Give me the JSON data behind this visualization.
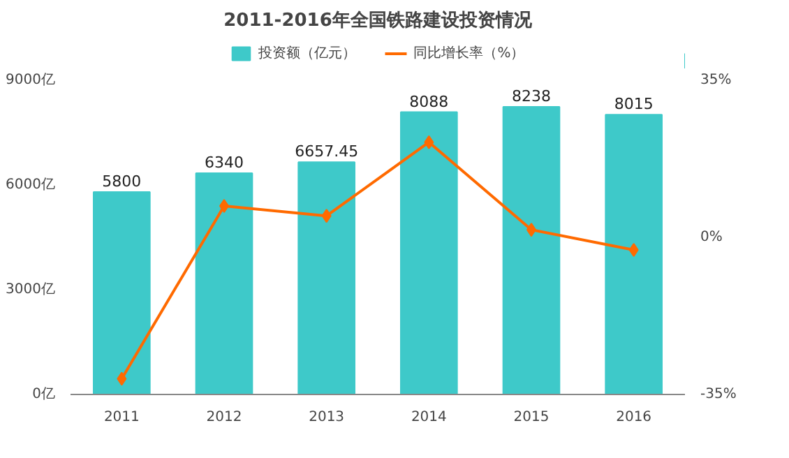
{
  "chart_data": {
    "type": "bar",
    "title": "2011-2016年全国铁路建设投资情况",
    "categories": [
      "2011",
      "2012",
      "2013",
      "2014",
      "2015",
      "2016"
    ],
    "series": [
      {
        "name": "投资额（亿元）",
        "color": "#3ec9c9",
        "values": [
          5800,
          6340,
          6657.45,
          8088,
          8238,
          8015
        ],
        "value_labels": [
          "5800",
          "6340",
          "6657.45",
          "8088",
          "8238",
          "8015"
        ]
      },
      {
        "name": "同比增长率（%）",
        "type": "line",
        "axis": "y2",
        "color": "#ff6a00",
        "marker": "diamond",
        "values": [
          -31.5,
          7,
          4.8,
          21.2,
          1.7,
          -2.8
        ]
      }
    ],
    "ylim": [
      0,
      9000
    ],
    "yticks": [
      {
        "value": 0,
        "label": "0亿"
      },
      {
        "value": 3000,
        "label": "3000亿"
      },
      {
        "value": 6000,
        "label": "6000亿"
      },
      {
        "value": 9000,
        "label": "9000亿"
      }
    ],
    "y2lim": [
      -35,
      35
    ],
    "y2ticks": [
      {
        "value": -35,
        "label": "-35%"
      },
      {
        "value": 0,
        "label": "0%"
      },
      {
        "value": 35,
        "label": "35%"
      }
    ],
    "legend": "top",
    "grid": false
  }
}
